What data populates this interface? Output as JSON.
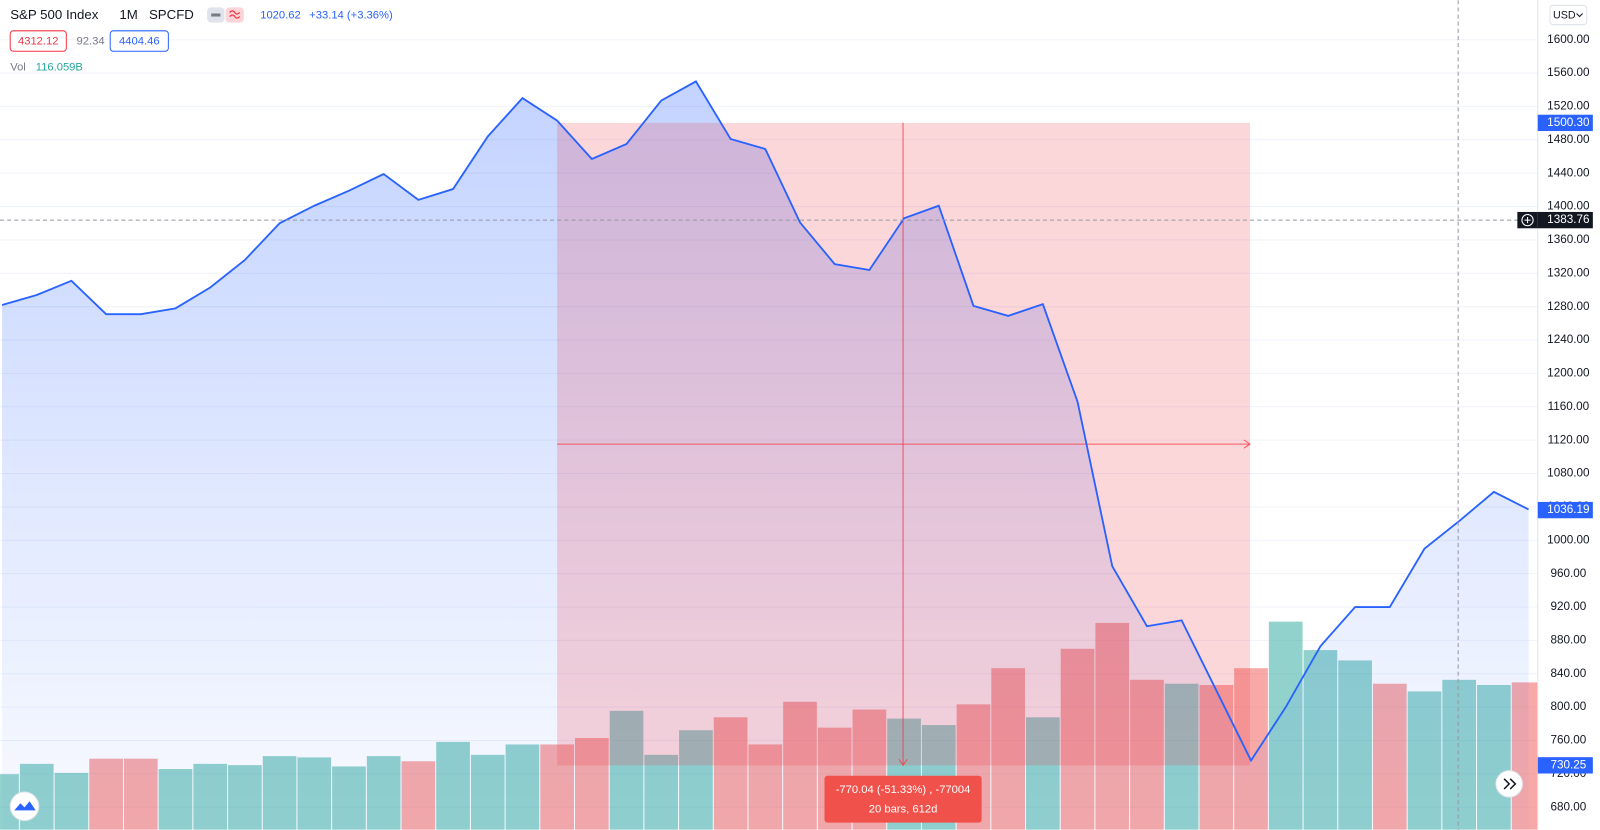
{
  "header": {
    "title": "S&P 500 Index",
    "interval": "1M",
    "source": "SPCFD",
    "last": 1020.62,
    "change": "+33.14 (+3.36%)",
    "bid": 4312.12,
    "spread": 92.34,
    "ask": 4404.46,
    "volume_label": "Vol",
    "volume": "116.059B"
  },
  "currency": "USD",
  "chart_data": {
    "type": "line",
    "color": "#2962ff",
    "values": [
      1282,
      1294,
      1311,
      1271,
      1271,
      1278,
      1303,
      1336,
      1380,
      1401,
      1419,
      1439,
      1408,
      1421,
      1484,
      1530,
      1503,
      1457,
      1475,
      1527,
      1550,
      1481,
      1469,
      1381,
      1331,
      1324,
      1386,
      1401,
      1281,
      1269,
      1283,
      1166,
      969,
      897,
      904,
      820,
      736,
      800,
      873,
      920,
      920,
      990,
      1023,
      1058,
      1037
    ],
    "volume": {
      "values": [
        43,
        51,
        44,
        55,
        55,
        47,
        51,
        50,
        57,
        56,
        49,
        57,
        53,
        68,
        58,
        66,
        66,
        71,
        92,
        58,
        77,
        87,
        66,
        99,
        79,
        93,
        86,
        81,
        97,
        125,
        87,
        140,
        160,
        116,
        113,
        112,
        125,
        161,
        139,
        131,
        113,
        107,
        116,
        112,
        114
      ],
      "colors": [
        "#26a69a",
        "#26a69a",
        "#26a69a",
        "#ef5350",
        "#ef5350",
        "#26a69a",
        "#26a69a",
        "#26a69a",
        "#26a69a",
        "#26a69a",
        "#26a69a",
        "#26a69a",
        "#ef5350",
        "#26a69a",
        "#26a69a",
        "#26a69a",
        "#ef5350",
        "#ef5350",
        "#26a69a",
        "#26a69a",
        "#26a69a",
        "#ef5350",
        "#ef5350",
        "#ef5350",
        "#ef5350",
        "#ef5350",
        "#26a69a",
        "#26a69a",
        "#ef5350",
        "#ef5350",
        "#26a69a",
        "#ef5350",
        "#ef5350",
        "#ef5350",
        "#26a69a",
        "#ef5350",
        "#ef5350",
        "#26a69a",
        "#26a69a",
        "#26a69a",
        "#ef5350",
        "#26a69a",
        "#26a69a",
        "#26a69a",
        "#ef5350"
      ]
    },
    "ylim": [
      653,
      1640
    ],
    "yticks": [
      {
        "value": 680,
        "label": "680.00"
      },
      {
        "value": 720,
        "label": "720.00"
      },
      {
        "value": 760,
        "label": "760.00"
      },
      {
        "value": 800,
        "label": "800.00"
      },
      {
        "value": 840,
        "label": "840.00"
      },
      {
        "value": 880,
        "label": "880.00"
      },
      {
        "value": 920,
        "label": "920.00"
      },
      {
        "value": 960,
        "label": "960.00"
      },
      {
        "value": 1000,
        "label": "1000.00"
      },
      {
        "value": 1040,
        "label": "1040.00"
      },
      {
        "value": 1080,
        "label": "1080.00"
      },
      {
        "value": 1120,
        "label": "1120.00"
      },
      {
        "value": 1160,
        "label": "1160.00"
      },
      {
        "value": 1200,
        "label": "1200.00"
      },
      {
        "value": 1240,
        "label": "1240.00"
      },
      {
        "value": 1280,
        "label": "1280.00"
      },
      {
        "value": 1320,
        "label": "1320.00"
      },
      {
        "value": 1360,
        "label": "1360.00"
      },
      {
        "value": 1400,
        "label": "1400.00"
      },
      {
        "value": 1440,
        "label": "1440.00"
      },
      {
        "value": 1480,
        "label": "1480.00"
      },
      {
        "value": 1520,
        "label": "1520.00"
      },
      {
        "value": 1560,
        "label": "1560.00"
      },
      {
        "value": 1600,
        "label": "1600.00"
      }
    ],
    "grid": true,
    "last_price": 1036.19,
    "crosshair": 1383.76,
    "measure": {
      "top": {
        "value": 1500.3,
        "label": "1500.30"
      },
      "bottom": 730.25,
      "change": "-770.04 (-51.33%) , -77004",
      "span": "20 bars, 612d",
      "color": "#f23645"
    }
  }
}
